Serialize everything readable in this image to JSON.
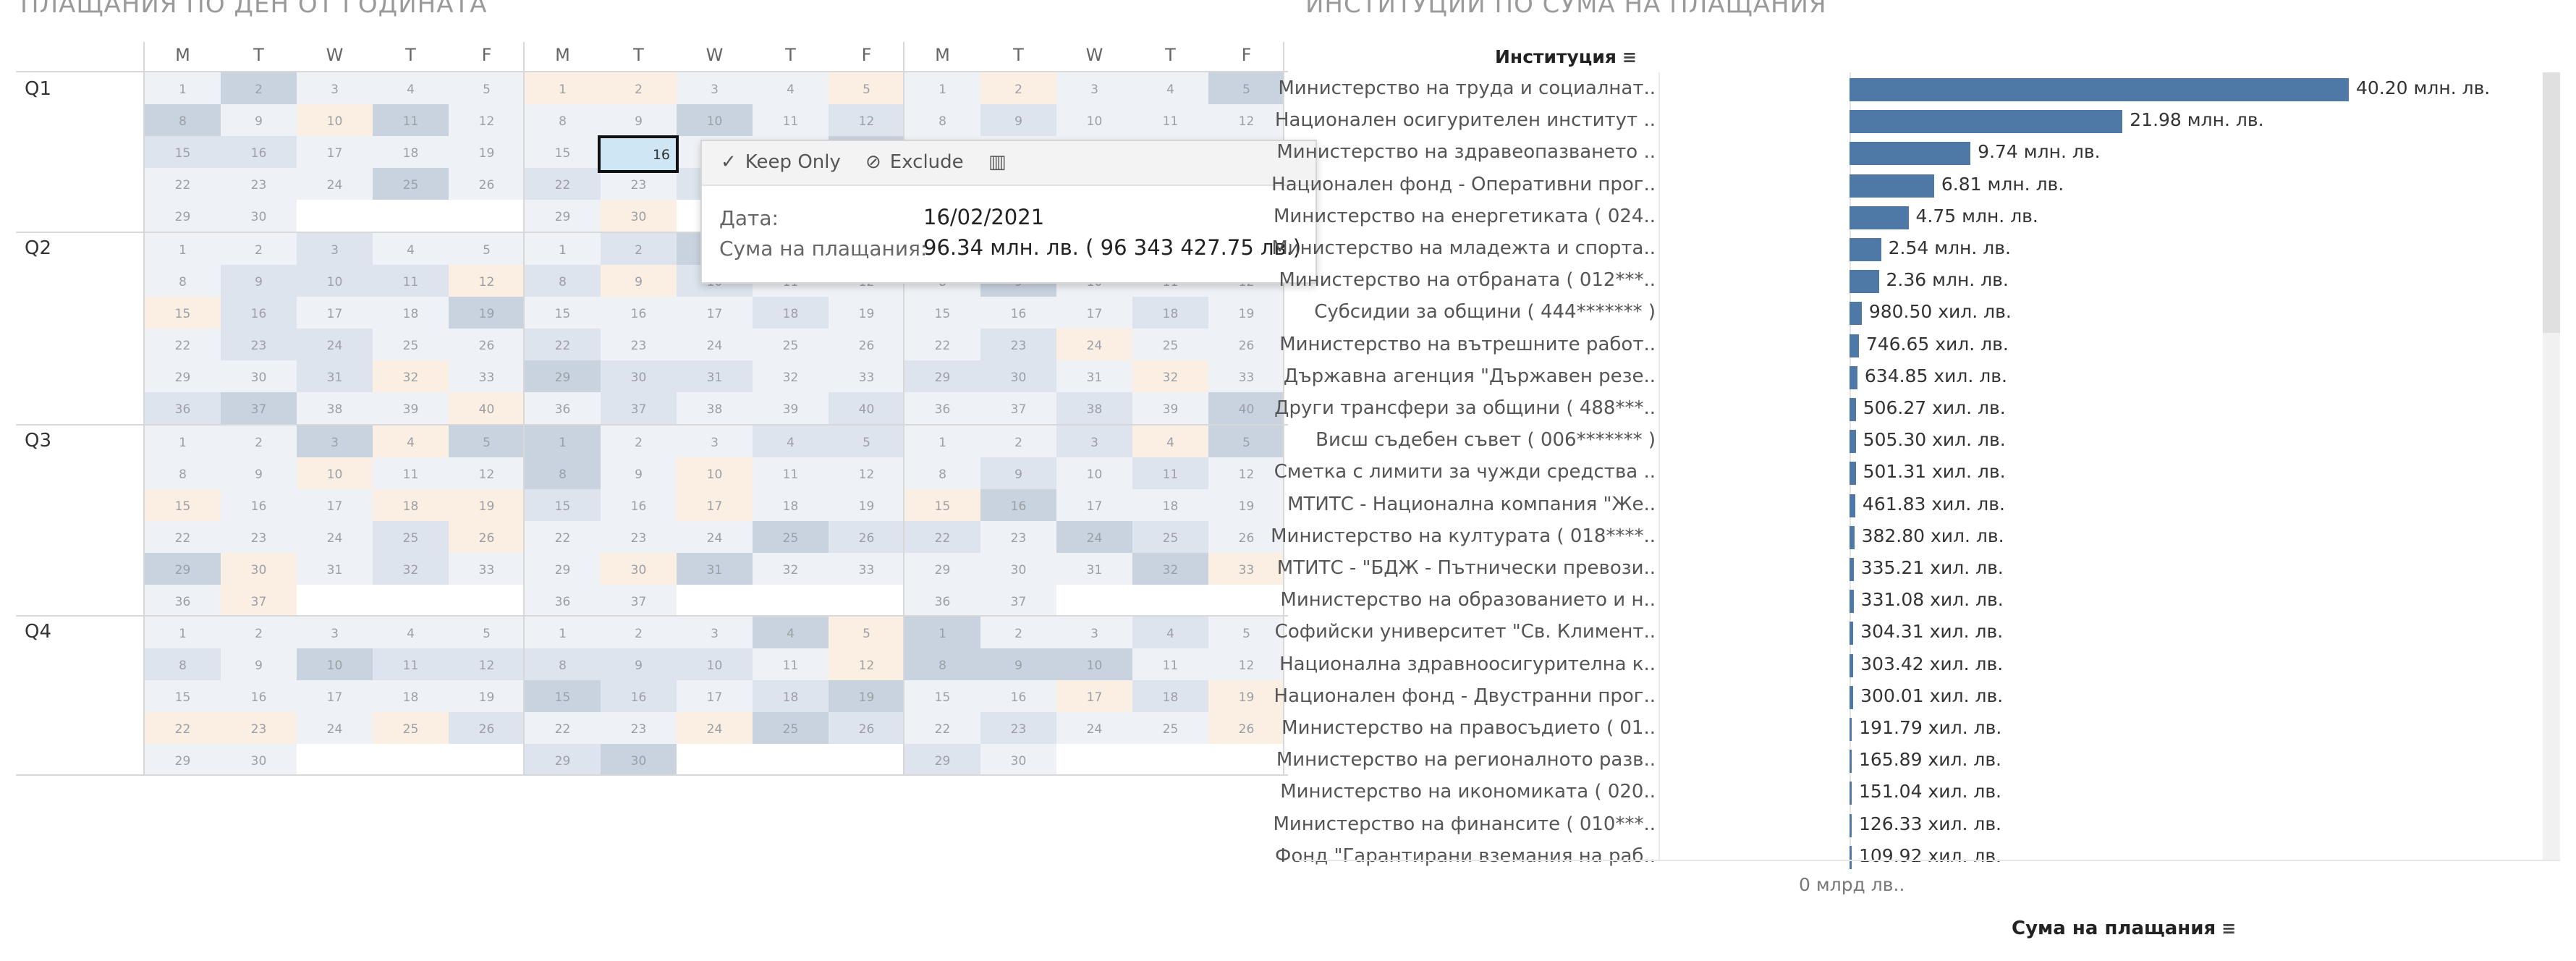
{
  "calendar": {
    "title": "ПЛАЩАНИЯ ПО ДЕН ОТ ГОДИНАТА",
    "days": [
      "M",
      "T",
      "W",
      "T",
      "F",
      "M",
      "T",
      "W",
      "T",
      "F",
      "M",
      "T",
      "W",
      "T",
      "F"
    ],
    "quarters": [
      "Q1",
      "Q2",
      "Q3",
      "Q4"
    ],
    "selected_day": "16"
  },
  "tooltip": {
    "keep_only": "Keep Only",
    "exclude": "Exclude",
    "date_label": "Дата:",
    "date_value": "16/02/2021",
    "sum_label": "Сума на плащания:",
    "sum_value": "96.34  млн. лв. ( 96 343 427.75 лв.)"
  },
  "institutions": {
    "title": "ИНСТИТУЦИИ ПО СУМА НА ПЛАЩАНИЯ",
    "column_header": "Институция",
    "axis_tick": "0 млрд лв..",
    "axis_title": "Сума на плащания",
    "rows": [
      {
        "name": "Министерство на труда и социалнат..",
        "value": 40.2,
        "label": "40.20  млн. лв."
      },
      {
        "name": "Национален осигурителен институт ..",
        "value": 21.98,
        "label": "21.98  млн. лв."
      },
      {
        "name": "Министерство на здравеопазването ..",
        "value": 9.74,
        "label": "9.74  млн. лв."
      },
      {
        "name": "Национален фонд - Оперативни прог..",
        "value": 6.81,
        "label": "6.81  млн. лв."
      },
      {
        "name": "Министерство на енергетиката ( 024..",
        "value": 4.75,
        "label": "4.75  млн. лв."
      },
      {
        "name": "Министерство на младежта и спорта..",
        "value": 2.54,
        "label": "2.54  млн. лв."
      },
      {
        "name": "Министерство на отбраната ( 012***..",
        "value": 2.36,
        "label": "2.36  млн. лв."
      },
      {
        "name": "Субсидии за общини ( 444******* )",
        "value": 0.9805,
        "label": "980.50  хил. лв."
      },
      {
        "name": "Министерство на вътрешните работ..",
        "value": 0.74665,
        "label": "746.65  хил. лв."
      },
      {
        "name": "Държавна агенция \"Държавен резе..",
        "value": 0.63485,
        "label": "634.85  хил. лв."
      },
      {
        "name": "Други трансфери за общини ( 488***..",
        "value": 0.50627,
        "label": "506.27  хил. лв."
      },
      {
        "name": "Висш съдебен съвет ( 006******* )",
        "value": 0.5053,
        "label": "505.30  хил. лв."
      },
      {
        "name": "Сметка с лимити за чужди средства ..",
        "value": 0.50131,
        "label": "501.31  хил. лв."
      },
      {
        "name": "МТИТС - Национална компания \"Же..",
        "value": 0.46183,
        "label": "461.83  хил. лв."
      },
      {
        "name": "Министерство на културата ( 018****..",
        "value": 0.3828,
        "label": "382.80  хил. лв."
      },
      {
        "name": "МТИТС - \"БДЖ - Пътнически превози..",
        "value": 0.33521,
        "label": "335.21  хил. лв."
      },
      {
        "name": "Министерство на образованието и н..",
        "value": 0.33108,
        "label": "331.08  хил. лв."
      },
      {
        "name": "Софийски университет \"Св. Климент..",
        "value": 0.30431,
        "label": "304.31  хил. лв."
      },
      {
        "name": "Национална здравноосигурителна к..",
        "value": 0.30342,
        "label": "303.42  хил. лв."
      },
      {
        "name": "Национален фонд - Двустранни прог..",
        "value": 0.30001,
        "label": "300.01  хил. лв."
      },
      {
        "name": "Министерство на правосъдието ( 01..",
        "value": 0.19179,
        "label": "191.79  хил. лв."
      },
      {
        "name": "Министерство на регионалното разв..",
        "value": 0.16589,
        "label": "165.89  хил. лв."
      },
      {
        "name": "Министерство на икономиката ( 020..",
        "value": 0.15104,
        "label": "151.04  хил. лв."
      },
      {
        "name": "Министерство на финансите ( 010***..",
        "value": 0.12633,
        "label": "126.33  хил. лв."
      },
      {
        "name": "Фонд \"Гарантирани вземания на раб..",
        "value": 0.10992,
        "label": "109.92  хил. лв."
      }
    ]
  },
  "colors": {
    "bar": "#4e79a7",
    "cal_light": "#eef2f6",
    "cal_mid": "#dde4ed",
    "cal_dark": "#c9d2df",
    "cal_warm": "#fbeee2",
    "selected": "#cfe6f5"
  }
}
